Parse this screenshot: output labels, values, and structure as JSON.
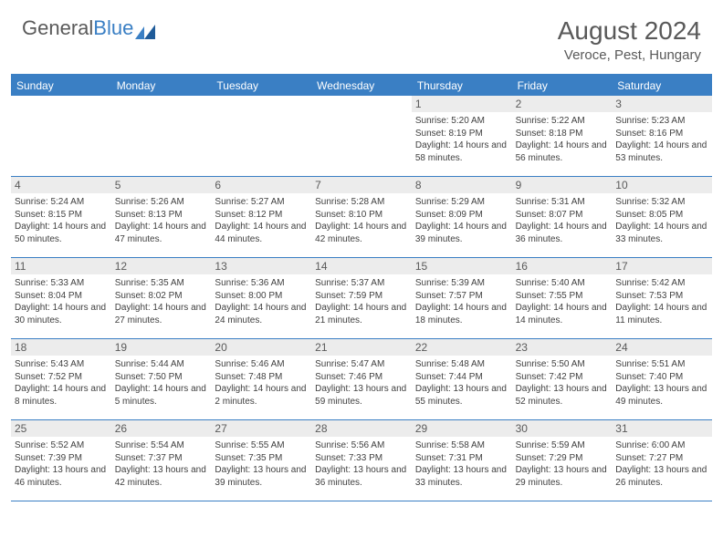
{
  "brand": {
    "part1": "General",
    "part2": "Blue"
  },
  "title": "August 2024",
  "location": "Veroce, Pest, Hungary",
  "colors": {
    "accent": "#3a7fc4",
    "header_text": "#ffffff",
    "daynum_bg": "#ececec",
    "text": "#404040",
    "title_text": "#595959"
  },
  "typography": {
    "title_fontsize": 28,
    "location_fontsize": 15,
    "dow_fontsize": 12,
    "daynum_fontsize": 12,
    "body_fontsize": 10
  },
  "days_of_week": [
    "Sunday",
    "Monday",
    "Tuesday",
    "Wednesday",
    "Thursday",
    "Friday",
    "Saturday"
  ],
  "weeks": [
    [
      null,
      null,
      null,
      null,
      {
        "n": "1",
        "sunrise": "5:20 AM",
        "sunset": "8:19 PM",
        "daylight": "14 hours and 58 minutes."
      },
      {
        "n": "2",
        "sunrise": "5:22 AM",
        "sunset": "8:18 PM",
        "daylight": "14 hours and 56 minutes."
      },
      {
        "n": "3",
        "sunrise": "5:23 AM",
        "sunset": "8:16 PM",
        "daylight": "14 hours and 53 minutes."
      }
    ],
    [
      {
        "n": "4",
        "sunrise": "5:24 AM",
        "sunset": "8:15 PM",
        "daylight": "14 hours and 50 minutes."
      },
      {
        "n": "5",
        "sunrise": "5:26 AM",
        "sunset": "8:13 PM",
        "daylight": "14 hours and 47 minutes."
      },
      {
        "n": "6",
        "sunrise": "5:27 AM",
        "sunset": "8:12 PM",
        "daylight": "14 hours and 44 minutes."
      },
      {
        "n": "7",
        "sunrise": "5:28 AM",
        "sunset": "8:10 PM",
        "daylight": "14 hours and 42 minutes."
      },
      {
        "n": "8",
        "sunrise": "5:29 AM",
        "sunset": "8:09 PM",
        "daylight": "14 hours and 39 minutes."
      },
      {
        "n": "9",
        "sunrise": "5:31 AM",
        "sunset": "8:07 PM",
        "daylight": "14 hours and 36 minutes."
      },
      {
        "n": "10",
        "sunrise": "5:32 AM",
        "sunset": "8:05 PM",
        "daylight": "14 hours and 33 minutes."
      }
    ],
    [
      {
        "n": "11",
        "sunrise": "5:33 AM",
        "sunset": "8:04 PM",
        "daylight": "14 hours and 30 minutes."
      },
      {
        "n": "12",
        "sunrise": "5:35 AM",
        "sunset": "8:02 PM",
        "daylight": "14 hours and 27 minutes."
      },
      {
        "n": "13",
        "sunrise": "5:36 AM",
        "sunset": "8:00 PM",
        "daylight": "14 hours and 24 minutes."
      },
      {
        "n": "14",
        "sunrise": "5:37 AM",
        "sunset": "7:59 PM",
        "daylight": "14 hours and 21 minutes."
      },
      {
        "n": "15",
        "sunrise": "5:39 AM",
        "sunset": "7:57 PM",
        "daylight": "14 hours and 18 minutes."
      },
      {
        "n": "16",
        "sunrise": "5:40 AM",
        "sunset": "7:55 PM",
        "daylight": "14 hours and 14 minutes."
      },
      {
        "n": "17",
        "sunrise": "5:42 AM",
        "sunset": "7:53 PM",
        "daylight": "14 hours and 11 minutes."
      }
    ],
    [
      {
        "n": "18",
        "sunrise": "5:43 AM",
        "sunset": "7:52 PM",
        "daylight": "14 hours and 8 minutes."
      },
      {
        "n": "19",
        "sunrise": "5:44 AM",
        "sunset": "7:50 PM",
        "daylight": "14 hours and 5 minutes."
      },
      {
        "n": "20",
        "sunrise": "5:46 AM",
        "sunset": "7:48 PM",
        "daylight": "14 hours and 2 minutes."
      },
      {
        "n": "21",
        "sunrise": "5:47 AM",
        "sunset": "7:46 PM",
        "daylight": "13 hours and 59 minutes."
      },
      {
        "n": "22",
        "sunrise": "5:48 AM",
        "sunset": "7:44 PM",
        "daylight": "13 hours and 55 minutes."
      },
      {
        "n": "23",
        "sunrise": "5:50 AM",
        "sunset": "7:42 PM",
        "daylight": "13 hours and 52 minutes."
      },
      {
        "n": "24",
        "sunrise": "5:51 AM",
        "sunset": "7:40 PM",
        "daylight": "13 hours and 49 minutes."
      }
    ],
    [
      {
        "n": "25",
        "sunrise": "5:52 AM",
        "sunset": "7:39 PM",
        "daylight": "13 hours and 46 minutes."
      },
      {
        "n": "26",
        "sunrise": "5:54 AM",
        "sunset": "7:37 PM",
        "daylight": "13 hours and 42 minutes."
      },
      {
        "n": "27",
        "sunrise": "5:55 AM",
        "sunset": "7:35 PM",
        "daylight": "13 hours and 39 minutes."
      },
      {
        "n": "28",
        "sunrise": "5:56 AM",
        "sunset": "7:33 PM",
        "daylight": "13 hours and 36 minutes."
      },
      {
        "n": "29",
        "sunrise": "5:58 AM",
        "sunset": "7:31 PM",
        "daylight": "13 hours and 33 minutes."
      },
      {
        "n": "30",
        "sunrise": "5:59 AM",
        "sunset": "7:29 PM",
        "daylight": "13 hours and 29 minutes."
      },
      {
        "n": "31",
        "sunrise": "6:00 AM",
        "sunset": "7:27 PM",
        "daylight": "13 hours and 26 minutes."
      }
    ]
  ],
  "labels": {
    "sunrise": "Sunrise: ",
    "sunset": "Sunset: ",
    "daylight": "Daylight: "
  }
}
